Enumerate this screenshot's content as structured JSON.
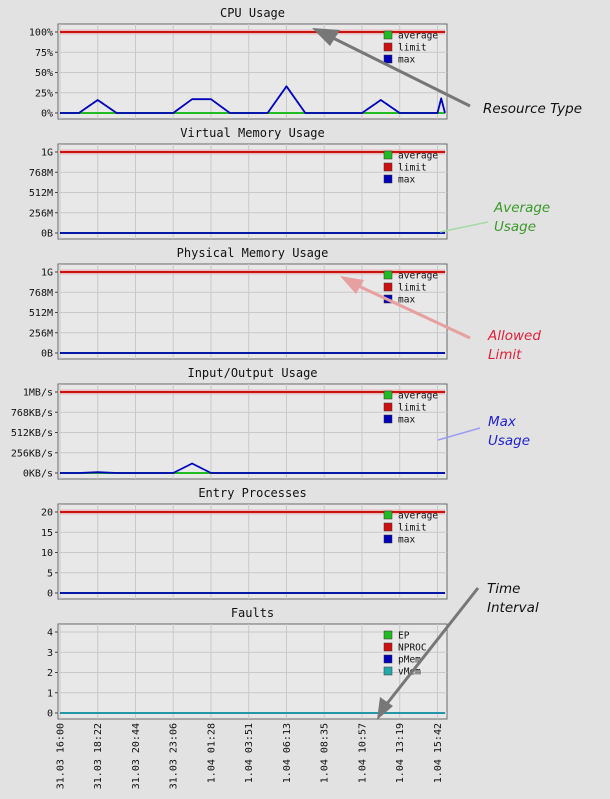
{
  "x_tick_labels": [
    "31.03 16:00",
    "31.03 18:22",
    "31.03 20:44",
    "31.03 23:06",
    "1.04 01:28",
    "1.04 03:51",
    "1.04 06:13",
    "1.04 08:35",
    "1.04 10:57",
    "1.04 13:19",
    "1.04 15:42"
  ],
  "annotations": {
    "resource_type": "Resource Type",
    "average_usage": [
      "Average",
      "Usage"
    ],
    "allowed_limit": [
      "Allowed",
      "Limit"
    ],
    "max_usage": [
      "Max",
      "Usage"
    ],
    "time_interval": [
      "Time",
      "Interval"
    ]
  },
  "colors": {
    "average": "#22bb22",
    "limit": "#cc1111",
    "max": "#0000bb",
    "vmem": "#22aaaa",
    "background": "#e2e2e2",
    "plot_bg": "#e8e8e8",
    "annotation_green": "#3a9a2a",
    "annotation_red": "#e0203a",
    "annotation_blue": "#2222cc",
    "annotation_black": "#111111"
  },
  "chart_data": [
    {
      "type": "line",
      "title": "CPU Usage",
      "yticks": [
        "100%",
        "75%",
        "50%",
        "25%",
        "0%"
      ],
      "ylim": [
        0,
        100
      ],
      "grid": true,
      "legend_position": "top-right",
      "x": [
        0,
        0.5,
        1,
        1.5,
        2,
        2.5,
        3,
        3.5,
        4,
        4.5,
        5,
        5.5,
        6,
        6.5,
        7,
        7.5,
        8,
        8.5,
        9,
        9.5,
        10,
        10.1,
        10.2
      ],
      "series": [
        {
          "name": "average",
          "color": "#22bb22",
          "values": [
            0,
            0,
            0,
            0,
            0,
            0,
            0,
            0,
            0,
            0,
            0,
            0,
            0,
            0,
            0,
            0,
            0,
            0,
            0,
            0,
            0,
            0,
            0
          ]
        },
        {
          "name": "limit",
          "color": "#cc1111",
          "values": [
            100,
            100,
            100,
            100,
            100,
            100,
            100,
            100,
            100,
            100,
            100,
            100,
            100,
            100,
            100,
            100,
            100,
            100,
            100,
            100,
            100,
            100,
            100
          ]
        },
        {
          "name": "max",
          "color": "#0000bb",
          "values": [
            0,
            0,
            16,
            0,
            0,
            0,
            0,
            17,
            17,
            0,
            0,
            0,
            33,
            0,
            0,
            0,
            0,
            16,
            0,
            0,
            0,
            18,
            0
          ]
        }
      ]
    },
    {
      "type": "line",
      "title": "Virtual Memory Usage",
      "yticks": [
        "1G",
        "768M",
        "512M",
        "256M",
        "0B"
      ],
      "ylim": [
        0,
        1024
      ],
      "grid": true,
      "legend_position": "top-right",
      "x": [
        0,
        0.5,
        1,
        1.5,
        2,
        2.5,
        3,
        3.5,
        4,
        4.5,
        5,
        5.5,
        6,
        6.5,
        7,
        7.5,
        8,
        8.5,
        9,
        9.5,
        10,
        10.2
      ],
      "series": [
        {
          "name": "average",
          "color": "#22bb22",
          "values": [
            0,
            0,
            0,
            0,
            0,
            0,
            0,
            0,
            0,
            0,
            0,
            0,
            0,
            0,
            0,
            0,
            0,
            0,
            0,
            0,
            0,
            0
          ]
        },
        {
          "name": "limit",
          "color": "#cc1111",
          "values": [
            1024,
            1024,
            1024,
            1024,
            1024,
            1024,
            1024,
            1024,
            1024,
            1024,
            1024,
            1024,
            1024,
            1024,
            1024,
            1024,
            1024,
            1024,
            1024,
            1024,
            1024,
            1024
          ]
        },
        {
          "name": "max",
          "color": "#0000bb",
          "values": [
            0,
            0,
            0,
            0,
            0,
            0,
            0,
            0,
            0,
            0,
            0,
            0,
            0,
            0,
            0,
            0,
            0,
            0,
            0,
            0,
            0,
            0
          ]
        }
      ]
    },
    {
      "type": "line",
      "title": "Physical Memory Usage",
      "yticks": [
        "1G",
        "768M",
        "512M",
        "256M",
        "0B"
      ],
      "ylim": [
        0,
        1024
      ],
      "grid": true,
      "legend_position": "top-right",
      "x": [
        0,
        0.5,
        1,
        1.5,
        2,
        2.5,
        3,
        3.5,
        4,
        4.5,
        5,
        5.5,
        6,
        6.5,
        7,
        7.5,
        8,
        8.5,
        9,
        9.5,
        10,
        10.2
      ],
      "series": [
        {
          "name": "average",
          "color": "#22bb22",
          "values": [
            0,
            0,
            0,
            0,
            0,
            0,
            0,
            0,
            0,
            0,
            0,
            0,
            0,
            0,
            0,
            0,
            0,
            0,
            0,
            0,
            0,
            0
          ]
        },
        {
          "name": "limit",
          "color": "#cc1111",
          "values": [
            1024,
            1024,
            1024,
            1024,
            1024,
            1024,
            1024,
            1024,
            1024,
            1024,
            1024,
            1024,
            1024,
            1024,
            1024,
            1024,
            1024,
            1024,
            1024,
            1024,
            1024,
            1024
          ]
        },
        {
          "name": "max",
          "color": "#0000bb",
          "values": [
            0,
            0,
            0,
            0,
            0,
            0,
            0,
            0,
            0,
            0,
            0,
            0,
            0,
            0,
            0,
            0,
            0,
            0,
            0,
            0,
            0,
            0
          ]
        }
      ]
    },
    {
      "type": "line",
      "title": "Input/Output Usage",
      "yticks": [
        "1MB/s",
        "768KB/s",
        "512KB/s",
        "256KB/s",
        "0KB/s"
      ],
      "ylim": [
        0,
        1024
      ],
      "grid": true,
      "legend_position": "top-right",
      "x": [
        0,
        0.5,
        1,
        1.5,
        2,
        2.5,
        3,
        3.5,
        4,
        4.5,
        5,
        5.5,
        6,
        6.5,
        7,
        7.5,
        8,
        8.5,
        9,
        9.5,
        9.8,
        9.95,
        10.1,
        10.2
      ],
      "series": [
        {
          "name": "average",
          "color": "#22bb22",
          "values": [
            0,
            0,
            0,
            0,
            0,
            0,
            0,
            0,
            0,
            0,
            0,
            0,
            0,
            0,
            0,
            0,
            0,
            0,
            0,
            0,
            0,
            0,
            0,
            0
          ]
        },
        {
          "name": "limit",
          "color": "#cc1111",
          "values": [
            1024,
            1024,
            1024,
            1024,
            1024,
            1024,
            1024,
            1024,
            1024,
            1024,
            1024,
            1024,
            1024,
            1024,
            1024,
            1024,
            1024,
            1024,
            1024,
            1024,
            1024,
            1024,
            1024,
            1024
          ]
        },
        {
          "name": "max",
          "color": "#0000bb",
          "values": [
            0,
            0,
            10,
            0,
            0,
            0,
            0,
            120,
            0,
            0,
            0,
            0,
            0,
            0,
            0,
            0,
            0,
            0,
            0,
            0,
            0,
            0,
            0,
            0
          ]
        }
      ]
    },
    {
      "type": "line",
      "title": "Entry Processes",
      "yticks": [
        "20",
        "15",
        "10",
        "5",
        "0"
      ],
      "ylim": [
        0,
        20
      ],
      "grid": true,
      "legend_position": "top-right",
      "x": [
        0,
        0.5,
        1,
        1.5,
        2,
        2.5,
        3,
        3.5,
        4,
        4.5,
        5,
        5.5,
        6,
        6.5,
        7,
        7.5,
        8,
        8.5,
        9,
        9.5,
        10,
        10.2
      ],
      "series": [
        {
          "name": "average",
          "color": "#22bb22",
          "values": [
            0,
            0,
            0,
            0,
            0,
            0,
            0,
            0,
            0,
            0,
            0,
            0,
            0,
            0,
            0,
            0,
            0,
            0,
            0,
            0,
            0,
            0
          ]
        },
        {
          "name": "limit",
          "color": "#cc1111",
          "values": [
            20,
            20,
            20,
            20,
            20,
            20,
            20,
            20,
            20,
            20,
            20,
            20,
            20,
            20,
            20,
            20,
            20,
            20,
            20,
            20,
            20,
            20
          ]
        },
        {
          "name": "max",
          "color": "#0000bb",
          "values": [
            0,
            0,
            0,
            0,
            0,
            0,
            0,
            0,
            0,
            0,
            0,
            0,
            0,
            0,
            0,
            0,
            0,
            0,
            0,
            0,
            0,
            0
          ]
        }
      ]
    },
    {
      "type": "line",
      "title": "Faults",
      "yticks": [
        "4",
        "3",
        "2",
        "1",
        "0"
      ],
      "ylim": [
        0,
        4
      ],
      "grid": true,
      "legend_position": "right",
      "x": [
        0,
        10.2
      ],
      "series": [
        {
          "name": "EP",
          "color": "#22bb22",
          "values": [
            0,
            0
          ]
        },
        {
          "name": "NPROC",
          "color": "#cc1111",
          "values": [
            0,
            0
          ]
        },
        {
          "name": "pMem",
          "color": "#0000bb",
          "values": [
            0,
            0
          ]
        },
        {
          "name": "vMem",
          "color": "#22aaaa",
          "values": [
            0,
            0
          ]
        }
      ]
    }
  ]
}
